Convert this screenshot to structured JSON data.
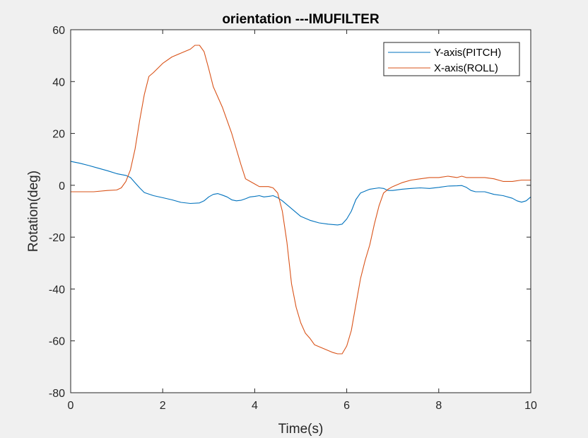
{
  "chart_data": {
    "type": "line",
    "title": "orientation ---IMUFILTER",
    "xlabel": "Time(s)",
    "ylabel": "Rotation(deg)",
    "xlim": [
      0,
      10
    ],
    "ylim": [
      -80,
      60
    ],
    "xticks": [
      0,
      2,
      4,
      6,
      8,
      10
    ],
    "yticks": [
      -80,
      -60,
      -40,
      -20,
      0,
      20,
      40,
      60
    ],
    "grid": false,
    "legend_position": "top-right",
    "series": [
      {
        "name": "Y-axis(PITCH)",
        "color": "#0072bd",
        "points": [
          [
            0,
            9.2
          ],
          [
            0.2,
            8.5
          ],
          [
            0.4,
            7.6
          ],
          [
            0.6,
            6.6
          ],
          [
            0.8,
            5.6
          ],
          [
            1.0,
            4.5
          ],
          [
            1.2,
            3.8
          ],
          [
            1.3,
            3.0
          ],
          [
            1.4,
            1.0
          ],
          [
            1.5,
            -1.0
          ],
          [
            1.6,
            -2.8
          ],
          [
            1.8,
            -4.0
          ],
          [
            2.0,
            -4.8
          ],
          [
            2.2,
            -5.6
          ],
          [
            2.4,
            -6.6
          ],
          [
            2.6,
            -7.0
          ],
          [
            2.8,
            -6.8
          ],
          [
            2.9,
            -6.0
          ],
          [
            3.0,
            -4.5
          ],
          [
            3.1,
            -3.5
          ],
          [
            3.2,
            -3.2
          ],
          [
            3.3,
            -3.8
          ],
          [
            3.4,
            -4.5
          ],
          [
            3.5,
            -5.6
          ],
          [
            3.6,
            -6.0
          ],
          [
            3.7,
            -5.8
          ],
          [
            3.8,
            -5.2
          ],
          [
            3.9,
            -4.5
          ],
          [
            4.0,
            -4.3
          ],
          [
            4.1,
            -4.0
          ],
          [
            4.2,
            -4.5
          ],
          [
            4.3,
            -4.3
          ],
          [
            4.4,
            -4.0
          ],
          [
            4.5,
            -4.8
          ],
          [
            4.6,
            -6.0
          ],
          [
            4.8,
            -9.0
          ],
          [
            5.0,
            -12.0
          ],
          [
            5.2,
            -13.5
          ],
          [
            5.4,
            -14.5
          ],
          [
            5.6,
            -15.0
          ],
          [
            5.8,
            -15.3
          ],
          [
            5.9,
            -15.0
          ],
          [
            6.0,
            -13.0
          ],
          [
            6.1,
            -10.0
          ],
          [
            6.2,
            -5.5
          ],
          [
            6.3,
            -3.0
          ],
          [
            6.5,
            -1.5
          ],
          [
            6.7,
            -1.0
          ],
          [
            6.8,
            -1.2
          ],
          [
            6.9,
            -2.0
          ],
          [
            7.0,
            -2.0
          ],
          [
            7.2,
            -1.5
          ],
          [
            7.4,
            -1.2
          ],
          [
            7.6,
            -1.0
          ],
          [
            7.8,
            -1.2
          ],
          [
            8.0,
            -0.8
          ],
          [
            8.2,
            -0.3
          ],
          [
            8.4,
            -0.2
          ],
          [
            8.5,
            -0.1
          ],
          [
            8.6,
            -0.8
          ],
          [
            8.7,
            -2.0
          ],
          [
            8.8,
            -2.5
          ],
          [
            9.0,
            -2.5
          ],
          [
            9.2,
            -3.5
          ],
          [
            9.4,
            -4.0
          ],
          [
            9.6,
            -5.0
          ],
          [
            9.7,
            -6.0
          ],
          [
            9.8,
            -6.5
          ],
          [
            9.9,
            -6.0
          ],
          [
            10.0,
            -4.5
          ]
        ]
      },
      {
        "name": "X-axis(ROLL)",
        "color": "#d95319",
        "points": [
          [
            0,
            -2.5
          ],
          [
            0.5,
            -2.5
          ],
          [
            0.8,
            -2.0
          ],
          [
            1.0,
            -1.8
          ],
          [
            1.1,
            -1.0
          ],
          [
            1.2,
            1.5
          ],
          [
            1.3,
            6.0
          ],
          [
            1.4,
            14.0
          ],
          [
            1.5,
            25.0
          ],
          [
            1.6,
            35.0
          ],
          [
            1.7,
            42.0
          ],
          [
            1.8,
            43.5
          ],
          [
            2.0,
            47.0
          ],
          [
            2.2,
            49.5
          ],
          [
            2.4,
            51.0
          ],
          [
            2.6,
            52.5
          ],
          [
            2.7,
            54.0
          ],
          [
            2.8,
            54.0
          ],
          [
            2.9,
            51.5
          ],
          [
            3.0,
            45.0
          ],
          [
            3.1,
            38.0
          ],
          [
            3.3,
            30.0
          ],
          [
            3.5,
            20.0
          ],
          [
            3.6,
            14.0
          ],
          [
            3.7,
            8.0
          ],
          [
            3.8,
            2.5
          ],
          [
            4.0,
            0.5
          ],
          [
            4.1,
            -0.5
          ],
          [
            4.2,
            -0.5
          ],
          [
            4.3,
            -0.5
          ],
          [
            4.4,
            -1.0
          ],
          [
            4.5,
            -3.0
          ],
          [
            4.6,
            -10.0
          ],
          [
            4.7,
            -22.0
          ],
          [
            4.8,
            -38.0
          ],
          [
            4.9,
            -47.0
          ],
          [
            5.0,
            -53.0
          ],
          [
            5.1,
            -57.0
          ],
          [
            5.2,
            -59.0
          ],
          [
            5.3,
            -61.5
          ],
          [
            5.5,
            -63.0
          ],
          [
            5.7,
            -64.5
          ],
          [
            5.8,
            -65.0
          ],
          [
            5.9,
            -65.0
          ],
          [
            6.0,
            -62.0
          ],
          [
            6.1,
            -56.0
          ],
          [
            6.2,
            -46.0
          ],
          [
            6.3,
            -36.0
          ],
          [
            6.4,
            -29.0
          ],
          [
            6.5,
            -23.0
          ],
          [
            6.6,
            -15.0
          ],
          [
            6.7,
            -8.0
          ],
          [
            6.8,
            -3.0
          ],
          [
            6.9,
            -1.5
          ],
          [
            7.0,
            -0.5
          ],
          [
            7.2,
            1.0
          ],
          [
            7.4,
            2.0
          ],
          [
            7.6,
            2.5
          ],
          [
            7.8,
            3.0
          ],
          [
            8.0,
            3.0
          ],
          [
            8.2,
            3.5
          ],
          [
            8.4,
            3.0
          ],
          [
            8.5,
            3.5
          ],
          [
            8.6,
            3.0
          ],
          [
            8.8,
            3.0
          ],
          [
            9.0,
            3.0
          ],
          [
            9.2,
            2.5
          ],
          [
            9.4,
            1.5
          ],
          [
            9.6,
            1.5
          ],
          [
            9.8,
            2.0
          ],
          [
            10.0,
            2.0
          ]
        ]
      }
    ]
  }
}
